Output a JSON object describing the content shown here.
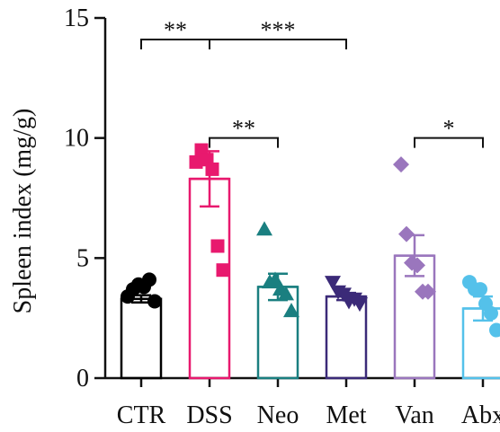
{
  "chart_data": {
    "type": "bar",
    "title": "",
    "xlabel": "",
    "ylabel": "Spleen index (mg/g)",
    "ylim": [
      0,
      15
    ],
    "yticks": [
      0,
      5,
      10,
      15
    ],
    "categories": [
      "CTR",
      "DSS",
      "Neo",
      "Met",
      "Van",
      "Abx"
    ],
    "colors": [
      "#000000",
      "#e8196e",
      "#1a7f80",
      "#3b2a78",
      "#9a76bd",
      "#54c1ea"
    ],
    "markers": [
      "circle",
      "square",
      "triangle",
      "triangle-down",
      "diamond",
      "circle"
    ],
    "means": [
      3.3,
      8.3,
      3.8,
      3.4,
      5.1,
      2.9
    ],
    "sem": [
      0.15,
      1.15,
      0.55,
      0.15,
      0.85,
      0.5
    ],
    "points": [
      [
        3.4,
        3.7,
        3.9,
        3.8,
        4.1,
        3.2
      ],
      [
        9.0,
        9.5,
        9.1,
        8.7,
        5.5,
        4.5
      ],
      [
        6.2,
        4.0,
        4.1,
        3.7,
        3.5,
        2.8
      ],
      [
        4.0,
        3.6,
        3.5,
        3.2,
        3.3,
        3.1
      ],
      [
        8.9,
        6.0,
        4.8,
        4.7,
        3.6,
        3.6
      ],
      [
        4.0,
        3.7,
        3.7,
        3.1,
        2.7,
        2.0
      ]
    ],
    "significance": [
      {
        "from": 0,
        "to": 1,
        "label": "**",
        "y": 14.1
      },
      {
        "from": 1,
        "to": 3,
        "label": "***",
        "y": 14.1
      },
      {
        "from": 1,
        "to": 2,
        "label": "**",
        "y": 10.0
      },
      {
        "from": 4,
        "to": 5,
        "label": "*",
        "y": 10.0
      }
    ],
    "grid": false,
    "legend": "none"
  }
}
